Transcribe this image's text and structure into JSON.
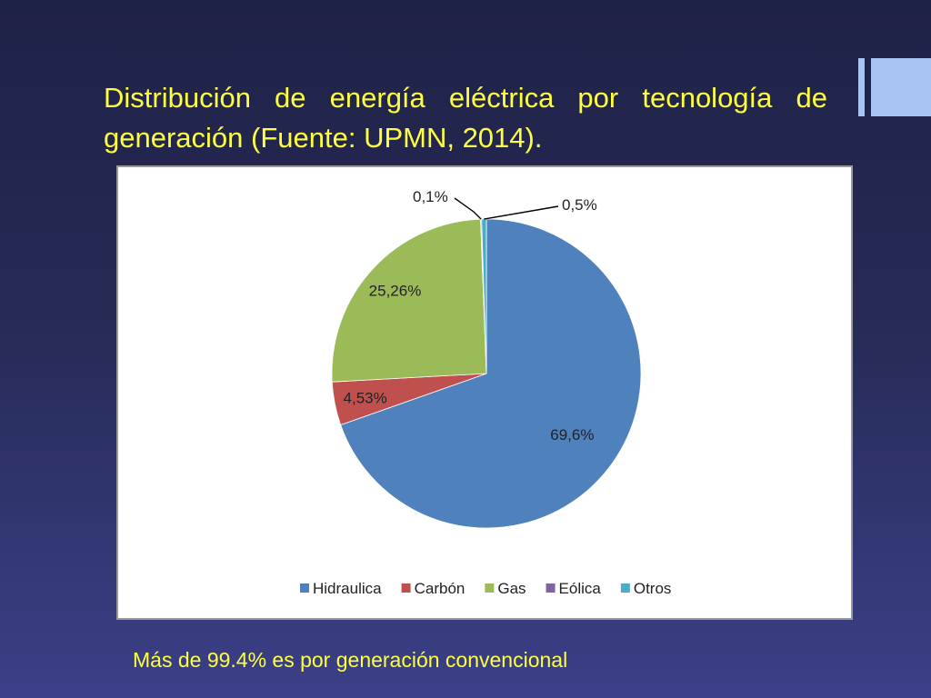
{
  "slide": {
    "title": "Distribución de energía eléctrica por tecnología de generación (Fuente: UPMN, 2014).",
    "footer": "Más de 99.4% es por generación convencional"
  },
  "colors": {
    "background_top": "#1f2247",
    "background_bottom": "#3b4088",
    "title_text": "#ffff3f",
    "accent_bars": "#a8c5f2"
  },
  "chart_data": {
    "type": "pie",
    "title": "",
    "start": "top, clockwise",
    "legend_position": "bottom",
    "slices": [
      {
        "name": "Hidraulica",
        "value": 69.6,
        "label": "69,6%",
        "color": "#4f81bd"
      },
      {
        "name": "Carbón",
        "value": 4.53,
        "label": "4,53%",
        "color": "#c0504d"
      },
      {
        "name": "Gas",
        "value": 25.26,
        "label": "25,26%",
        "color": "#9bbb59"
      },
      {
        "name": "Eólica",
        "value": 0.1,
        "label": "0,1%",
        "color": "#8064a2"
      },
      {
        "name": "Otros",
        "value": 0.5,
        "label": "0,5%",
        "color": "#4bacc6"
      }
    ]
  }
}
